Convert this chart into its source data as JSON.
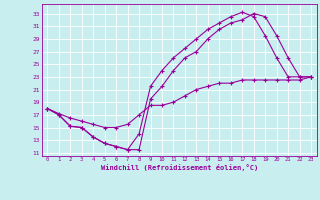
{
  "xlabel": "Windchill (Refroidissement éolien,°C)",
  "bg_color": "#c8eef0",
  "line_color": "#990099",
  "xlim": [
    -0.5,
    23.5
  ],
  "ylim": [
    10.5,
    34.5
  ],
  "xticks": [
    0,
    1,
    2,
    3,
    4,
    5,
    6,
    7,
    8,
    9,
    10,
    11,
    12,
    13,
    14,
    15,
    16,
    17,
    18,
    19,
    20,
    21,
    22,
    23
  ],
  "yticks": [
    11,
    13,
    15,
    17,
    19,
    21,
    23,
    25,
    27,
    29,
    31,
    33
  ],
  "grid_color": "#ffffff",
  "line1_x": [
    0,
    1,
    2,
    3,
    4,
    5,
    6,
    7,
    8,
    9,
    10,
    11,
    12,
    13,
    14,
    15,
    16,
    17,
    18,
    19,
    20,
    21,
    22,
    23
  ],
  "line1_y": [
    18.0,
    17.0,
    15.2,
    15.0,
    13.5,
    12.5,
    12.0,
    11.5,
    11.5,
    19.5,
    21.5,
    24.0,
    26.0,
    27.0,
    29.0,
    30.5,
    31.5,
    32.0,
    33.0,
    32.5,
    29.5,
    26.0,
    23.0,
    23.0
  ],
  "line2_x": [
    0,
    1,
    2,
    3,
    4,
    5,
    6,
    7,
    8,
    9,
    10,
    11,
    12,
    13,
    14,
    15,
    16,
    17,
    18,
    19,
    20,
    21,
    22,
    23
  ],
  "line2_y": [
    18.0,
    17.0,
    15.2,
    15.0,
    13.5,
    12.5,
    12.0,
    11.5,
    14.0,
    21.5,
    24.0,
    26.0,
    27.5,
    29.0,
    30.5,
    31.5,
    32.5,
    33.2,
    32.5,
    29.5,
    26.0,
    23.0,
    23.0,
    23.0
  ],
  "line3_x": [
    0,
    1,
    2,
    3,
    4,
    5,
    6,
    7,
    8,
    9,
    10,
    11,
    12,
    13,
    14,
    15,
    16,
    17,
    18,
    19,
    20,
    21,
    22,
    23
  ],
  "line3_y": [
    18.0,
    17.2,
    16.5,
    16.0,
    15.5,
    15.0,
    15.0,
    15.5,
    17.0,
    18.5,
    18.5,
    19.0,
    20.0,
    21.0,
    21.5,
    22.0,
    22.0,
    22.5,
    22.5,
    22.5,
    22.5,
    22.5,
    22.5,
    23.0
  ]
}
